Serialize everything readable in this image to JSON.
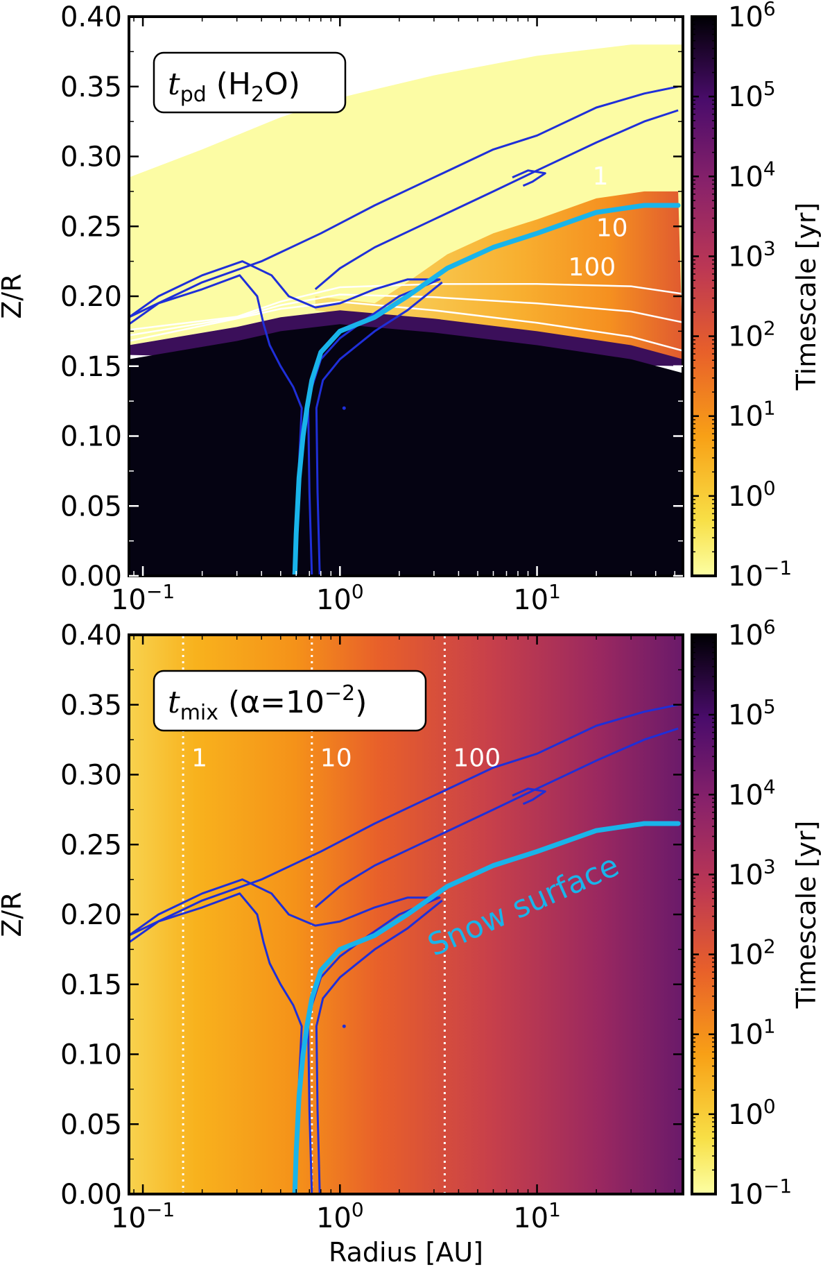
{
  "chart_data": [
    {
      "type": "heatmap",
      "panel": "top",
      "annotation": {
        "symbol": "t",
        "subscript": "pd",
        "rest_prefix": "(H",
        "rest_sub": "2",
        "rest_suffix": "O)"
      },
      "xlabel": "",
      "ylabel": "Z/R",
      "xscale": "log",
      "xlim": [
        0.085,
        55
      ],
      "ylim": [
        0.0,
        0.4
      ],
      "yticks": [
        0.0,
        0.05,
        0.1,
        0.15,
        0.2,
        0.25,
        0.3,
        0.35,
        0.4
      ],
      "ytick_labels": [
        "0.00",
        "0.05",
        "0.10",
        "0.15",
        "0.20",
        "0.25",
        "0.30",
        "0.35",
        "0.40"
      ],
      "xticks": [
        {
          "value": 0.1,
          "base": "10",
          "exp": "−1"
        },
        {
          "value": 1,
          "base": "10",
          "exp": "0"
        },
        {
          "value": 10,
          "base": "10",
          "exp": "1"
        }
      ],
      "colorbar": {
        "label": "Timescale [yr]",
        "scale": "log",
        "range": [
          0.1,
          1000000
        ],
        "ticks": [
          {
            "base": "10",
            "exp": "6"
          },
          {
            "base": "10",
            "exp": "5"
          },
          {
            "base": "10",
            "exp": "4"
          },
          {
            "base": "10",
            "exp": "3"
          },
          {
            "base": "10",
            "exp": "2"
          },
          {
            "base": "10",
            "exp": "1"
          },
          {
            "base": "10",
            "exp": "0"
          },
          {
            "base": "10",
            "exp": "−1"
          }
        ]
      },
      "contour_labels": [
        {
          "text": "1",
          "r": 21,
          "z": 0.28
        },
        {
          "text": "10",
          "r": 24,
          "z": 0.243
        },
        {
          "text": "100",
          "r": 19,
          "z": 0.215
        }
      ],
      "surface_boundary_z": [
        [
          0.085,
          0.165
        ],
        [
          0.3,
          0.178
        ],
        [
          0.5,
          0.185
        ],
        [
          1,
          0.19
        ],
        [
          3,
          0.184
        ],
        [
          10,
          0.175
        ],
        [
          30,
          0.165
        ],
        [
          55,
          0.155
        ]
      ],
      "top_boundary_z": [
        [
          0.085,
          0.285
        ],
        [
          0.2,
          0.305
        ],
        [
          0.5,
          0.328
        ],
        [
          1,
          0.342
        ],
        [
          3,
          0.358
        ],
        [
          10,
          0.372
        ],
        [
          30,
          0.38
        ],
        [
          55,
          0.38
        ]
      ]
    },
    {
      "type": "heatmap",
      "panel": "bottom",
      "annotation": {
        "symbol": "t",
        "subscript": "mix",
        "rest_prefix": "(α=10",
        "rest_sup": "−2",
        "rest_suffix": ")"
      },
      "xlabel": "Radius [AU]",
      "ylabel": "Z/R",
      "xscale": "log",
      "xlim": [
        0.085,
        55
      ],
      "ylim": [
        0.0,
        0.4
      ],
      "yticks": [
        0.0,
        0.05,
        0.1,
        0.15,
        0.2,
        0.25,
        0.3,
        0.35,
        0.4
      ],
      "ytick_labels": [
        "0.00",
        "0.05",
        "0.10",
        "0.15",
        "0.20",
        "0.25",
        "0.30",
        "0.35",
        "0.40"
      ],
      "xticks": [
        {
          "value": 0.1,
          "base": "10",
          "exp": "−1"
        },
        {
          "value": 1,
          "base": "10",
          "exp": "0"
        },
        {
          "value": 10,
          "base": "10",
          "exp": "1"
        }
      ],
      "colorbar": {
        "label": "Timescale [yr]",
        "scale": "log",
        "range": [
          0.1,
          1000000
        ],
        "ticks": [
          {
            "base": "10",
            "exp": "6"
          },
          {
            "base": "10",
            "exp": "5"
          },
          {
            "base": "10",
            "exp": "4"
          },
          {
            "base": "10",
            "exp": "3"
          },
          {
            "base": "10",
            "exp": "2"
          },
          {
            "base": "10",
            "exp": "1"
          },
          {
            "base": "10",
            "exp": "0"
          },
          {
            "base": "10",
            "exp": "−1"
          }
        ]
      },
      "mixing_time_contours": [
        {
          "label": "1",
          "r": 0.16
        },
        {
          "label": "10",
          "r": 0.72
        },
        {
          "label": "100",
          "r": 3.4
        }
      ],
      "snow_surface_label": "Snow surface"
    }
  ],
  "shared_overlays": {
    "snow_surface": [
      [
        0.59,
        0.0
      ],
      [
        0.6,
        0.03
      ],
      [
        0.62,
        0.07
      ],
      [
        0.65,
        0.1
      ],
      [
        0.68,
        0.12
      ],
      [
        0.72,
        0.14
      ],
      [
        0.8,
        0.16
      ],
      [
        1.0,
        0.175
      ],
      [
        1.5,
        0.185
      ],
      [
        2.2,
        0.2
      ],
      [
        3.5,
        0.22
      ],
      [
        6,
        0.235
      ],
      [
        10,
        0.245
      ],
      [
        20,
        0.26
      ],
      [
        35,
        0.265
      ],
      [
        52,
        0.265
      ]
    ],
    "blue_contours": [
      [
        [
          0.58,
          0.0
        ],
        [
          0.61,
          0.06
        ],
        [
          0.64,
          0.12
        ],
        [
          0.58,
          0.135
        ],
        [
          0.5,
          0.15
        ],
        [
          0.44,
          0.165
        ],
        [
          0.41,
          0.18
        ],
        [
          0.38,
          0.2
        ],
        [
          0.31,
          0.215
        ],
        [
          0.2,
          0.205
        ],
        [
          0.12,
          0.195
        ],
        [
          0.085,
          0.18
        ]
      ],
      [
        [
          0.72,
          0.0
        ],
        [
          0.7,
          0.06
        ],
        [
          0.69,
          0.12
        ],
        [
          0.72,
          0.135
        ],
        [
          0.8,
          0.155
        ],
        [
          1.0,
          0.17
        ],
        [
          1.4,
          0.185
        ],
        [
          2.0,
          0.2
        ],
        [
          3.2,
          0.212
        ],
        [
          2.2,
          0.212
        ],
        [
          1.5,
          0.205
        ],
        [
          1.0,
          0.195
        ],
        [
          0.75,
          0.192
        ],
        [
          0.55,
          0.2
        ],
        [
          0.45,
          0.215
        ],
        [
          0.32,
          0.225
        ],
        [
          0.2,
          0.215
        ],
        [
          0.12,
          0.2
        ],
        [
          0.085,
          0.185
        ]
      ],
      [
        [
          0.79,
          0.0
        ],
        [
          0.77,
          0.06
        ],
        [
          0.76,
          0.12
        ],
        [
          0.82,
          0.14
        ],
        [
          1.0,
          0.155
        ],
        [
          1.5,
          0.175
        ],
        [
          2.2,
          0.19
        ],
        [
          3.3,
          0.21
        ]
      ],
      [
        [
          0.085,
          0.185
        ],
        [
          0.2,
          0.21
        ],
        [
          0.4,
          0.225
        ],
        [
          0.8,
          0.245
        ],
        [
          1.5,
          0.265
        ],
        [
          3,
          0.285
        ],
        [
          6,
          0.305
        ],
        [
          10,
          0.315
        ],
        [
          20,
          0.335
        ],
        [
          35,
          0.345
        ],
        [
          52,
          0.35
        ]
      ],
      [
        [
          0.75,
          0.205
        ],
        [
          1.0,
          0.22
        ],
        [
          1.5,
          0.235
        ],
        [
          3,
          0.255
        ],
        [
          6,
          0.275
        ],
        [
          10,
          0.29
        ],
        [
          20,
          0.31
        ],
        [
          35,
          0.325
        ],
        [
          52,
          0.333
        ]
      ],
      [
        [
          7.5,
          0.285
        ],
        [
          9,
          0.29
        ],
        [
          11,
          0.288
        ],
        [
          9.5,
          0.282
        ],
        [
          8.5,
          0.279
        ]
      ]
    ]
  }
}
